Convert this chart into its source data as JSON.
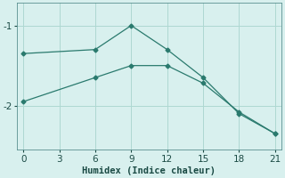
{
  "line1_x": [
    0,
    6,
    9,
    12,
    15,
    18,
    21
  ],
  "line1_y": [
    -1.35,
    -1.3,
    -1.0,
    -1.3,
    -1.65,
    -2.1,
    -2.35
  ],
  "line2_x": [
    0,
    6,
    9,
    12,
    15,
    18,
    21
  ],
  "line2_y": [
    -1.95,
    -1.65,
    -1.5,
    -1.5,
    -1.72,
    -2.08,
    -2.35
  ],
  "line_color": "#2a7a6e",
  "bg_color": "#d8f0ee",
  "grid_color": "#aed8d2",
  "xlabel": "Humidex (Indice chaleur)",
  "xlim": [
    -0.5,
    21.5
  ],
  "ylim": [
    -2.55,
    -0.72
  ],
  "xticks": [
    0,
    3,
    6,
    9,
    12,
    15,
    18,
    21
  ],
  "yticks": [
    -2,
    -1
  ],
  "xlabel_fontsize": 7.5,
  "tick_fontsize": 7.5,
  "marker": "D",
  "marker_size": 2.5,
  "linewidth": 0.9
}
